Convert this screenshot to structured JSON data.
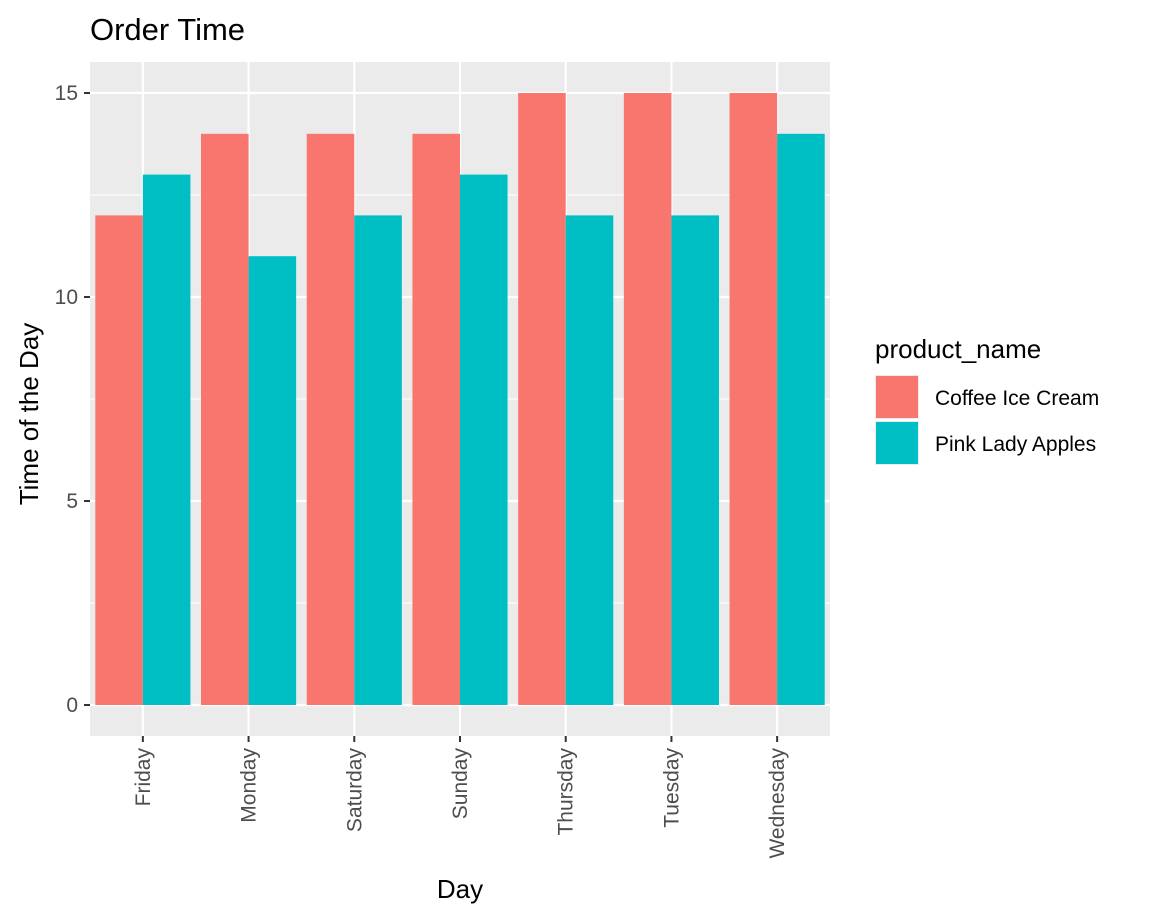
{
  "chart_data": {
    "type": "bar",
    "title": "Order Time",
    "xlabel": "Day",
    "ylabel": "Time of the Day",
    "categories": [
      "Friday",
      "Monday",
      "Saturday",
      "Sunday",
      "Thursday",
      "Tuesday",
      "Wednesday"
    ],
    "series": [
      {
        "name": "Coffee Ice Cream",
        "color": "#F8766D",
        "values": [
          12,
          14,
          14,
          14,
          15,
          15,
          15
        ]
      },
      {
        "name": "Pink Lady Apples",
        "color": "#00BFC4",
        "values": [
          13,
          11,
          12,
          13,
          12,
          12,
          14
        ]
      }
    ],
    "ylim": [
      0,
      15
    ],
    "yticks": [
      0,
      5,
      10,
      15
    ],
    "ytick_labels": [
      "0",
      "5",
      "10",
      "15"
    ],
    "grid": true,
    "legend": {
      "title": "product_name",
      "position": "right"
    },
    "panel_color": "#EBEBEB",
    "grid_color": "#FFFFFF"
  }
}
